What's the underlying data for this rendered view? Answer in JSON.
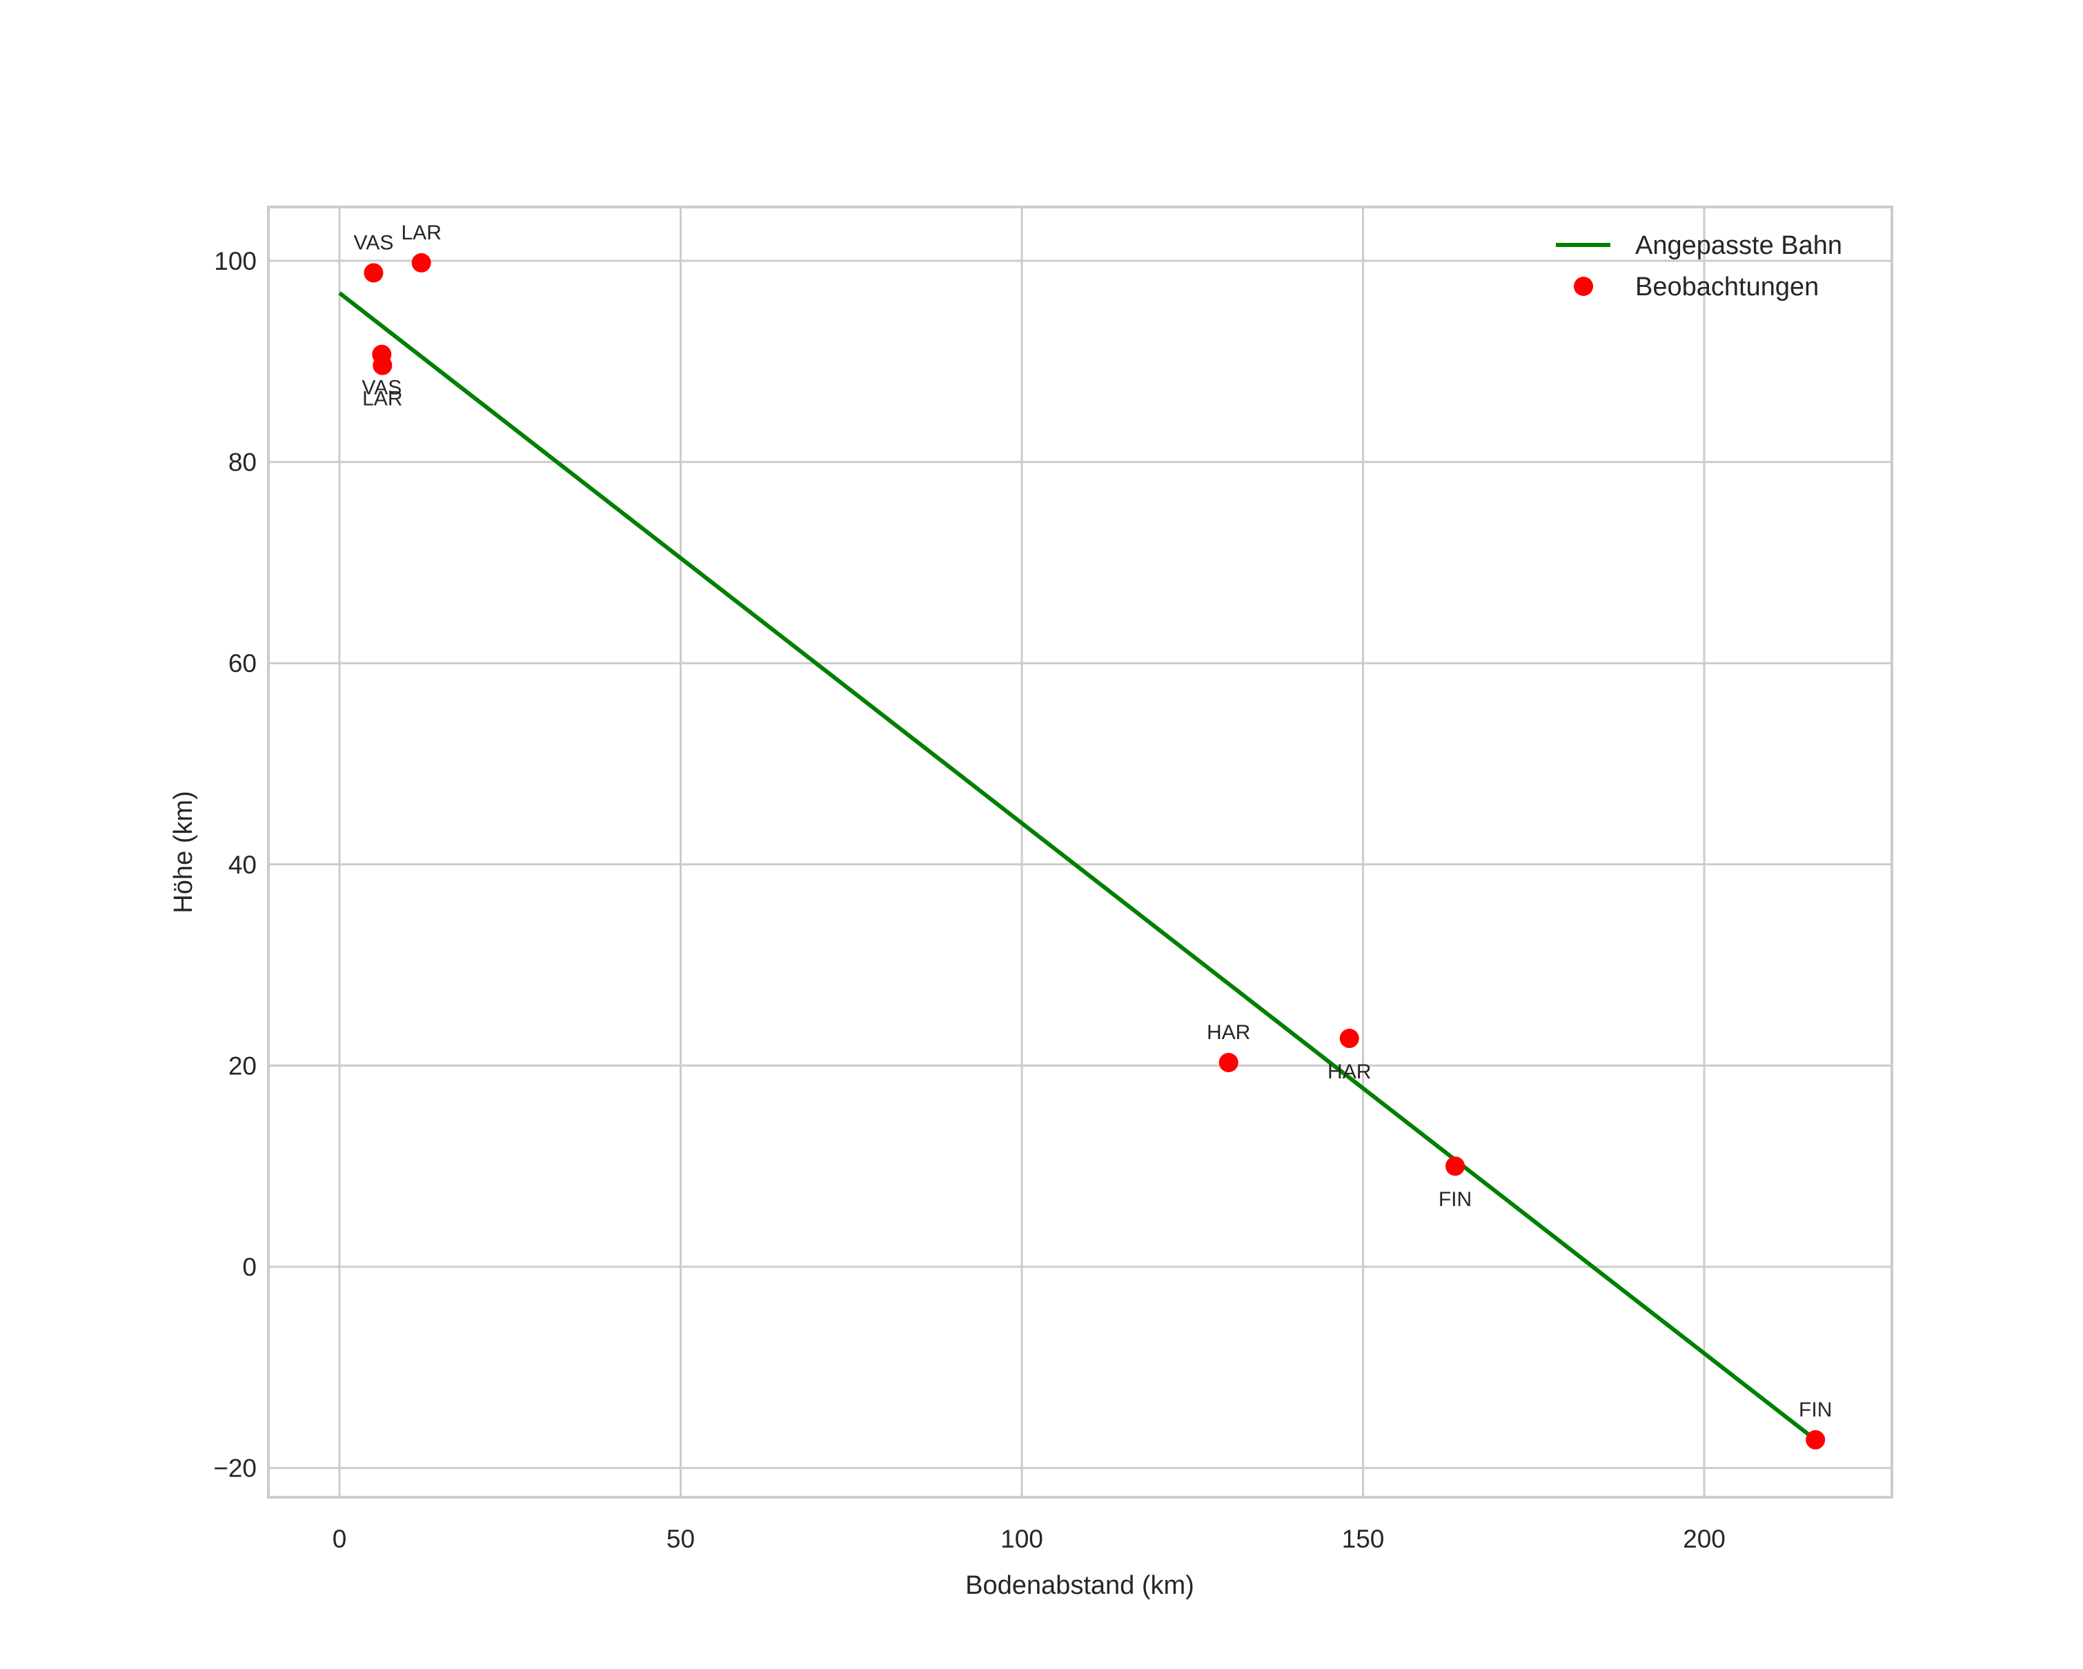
{
  "chart_data": {
    "type": "scatter",
    "title": "",
    "xlabel": "Bodenabstand (km)",
    "ylabel": "Höhe (km)",
    "xlim": [
      -11,
      227
    ],
    "ylim": [
      -23,
      105.5
    ],
    "xticks": [
      0,
      50,
      100,
      150,
      200
    ],
    "xtick_labels": [
      "0",
      "50",
      "100",
      "150",
      "200"
    ],
    "yticks": [
      -20,
      0,
      20,
      40,
      60,
      80,
      100
    ],
    "ytick_labels": [
      "−20",
      "0",
      "20",
      "40",
      "60",
      "80",
      "100"
    ],
    "grid": true,
    "legend_position": "upper right",
    "series": [
      {
        "name": "Angepasste Bahn",
        "type": "line",
        "color": "#008000",
        "x": [
          0,
          216.3
        ],
        "y": [
          96.8,
          -17.2
        ]
      },
      {
        "name": "Beobachtungen",
        "type": "scatter",
        "color": "#ff0000",
        "points": [
          {
            "x": 5.0,
            "y": 98.8,
            "label": "VAS",
            "label_pos": "above"
          },
          {
            "x": 12.0,
            "y": 99.8,
            "label": "LAR",
            "label_pos": "above"
          },
          {
            "x": 6.2,
            "y": 90.7,
            "label": "VAS",
            "label_pos": "below"
          },
          {
            "x": 6.3,
            "y": 89.6,
            "label": "LAR",
            "label_pos": "below"
          },
          {
            "x": 130.3,
            "y": 20.3,
            "label": "HAR",
            "label_pos": "above"
          },
          {
            "x": 148.0,
            "y": 22.7,
            "label": "HAR",
            "label_pos": "below"
          },
          {
            "x": 163.5,
            "y": 10.0,
            "label": "FIN",
            "label_pos": "below"
          },
          {
            "x": 216.3,
            "y": -17.2,
            "label": "FIN",
            "label_pos": "above"
          }
        ]
      }
    ],
    "legend": [
      {
        "label": "Angepasste Bahn",
        "marker": "line",
        "color": "#008000"
      },
      {
        "label": "Beobachtungen",
        "marker": "dot",
        "color": "#ff0000"
      }
    ]
  },
  "style": {
    "grid_color": "#cccccc",
    "frame_color": "#cccccc",
    "text_color": "#262626"
  }
}
